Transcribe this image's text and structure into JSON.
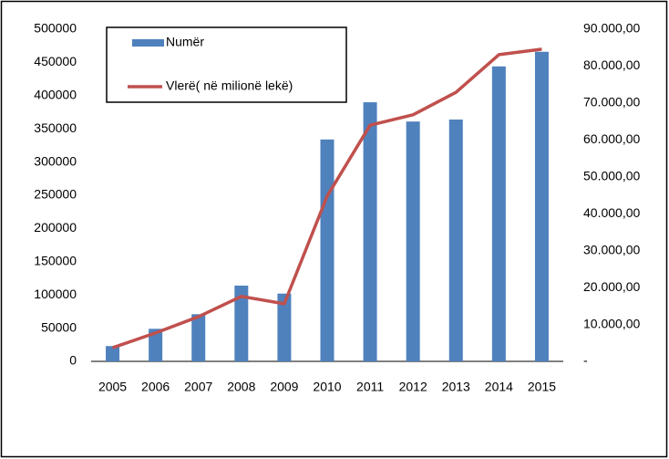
{
  "chart_data": {
    "type": "bar_line",
    "categories": [
      "2005",
      "2006",
      "2007",
      "2008",
      "2009",
      "2010",
      "2011",
      "2012",
      "2013",
      "2014",
      "2015"
    ],
    "series": [
      {
        "name": "Numër",
        "type": "bar",
        "color": "#4f81bd",
        "values": [
          23000,
          49000,
          71000,
          114000,
          102000,
          334000,
          390000,
          361000,
          364000,
          444000,
          466000
        ]
      },
      {
        "name": "Vlerë( në milionë lekë)",
        "type": "line",
        "axis": "y2",
        "color": "#c0504d",
        "values": [
          3700,
          7700,
          12100,
          17600,
          15600,
          44800,
          64000,
          66800,
          72900,
          83100,
          84600
        ]
      }
    ],
    "ylim": [
      0,
      500000
    ],
    "yticks": [
      0,
      50000,
      100000,
      150000,
      200000,
      250000,
      300000,
      350000,
      400000,
      450000,
      500000
    ],
    "y2lim": [
      0,
      90000
    ],
    "y2ticks": [
      {
        "value": 0,
        "label": "-"
      },
      {
        "value": 10000,
        "label": "10.000,00"
      },
      {
        "value": 20000,
        "label": "20.000,00"
      },
      {
        "value": 30000,
        "label": "30.000,00"
      },
      {
        "value": 40000,
        "label": "40.000,00"
      },
      {
        "value": 50000,
        "label": "50.000,00"
      },
      {
        "value": 60000,
        "label": "60.000,00"
      },
      {
        "value": 70000,
        "label": "70.000,00"
      },
      {
        "value": 80000,
        "label": "80.000,00"
      },
      {
        "value": 90000,
        "label": "90.000,00"
      }
    ],
    "grid": false,
    "legend": "top-left"
  }
}
